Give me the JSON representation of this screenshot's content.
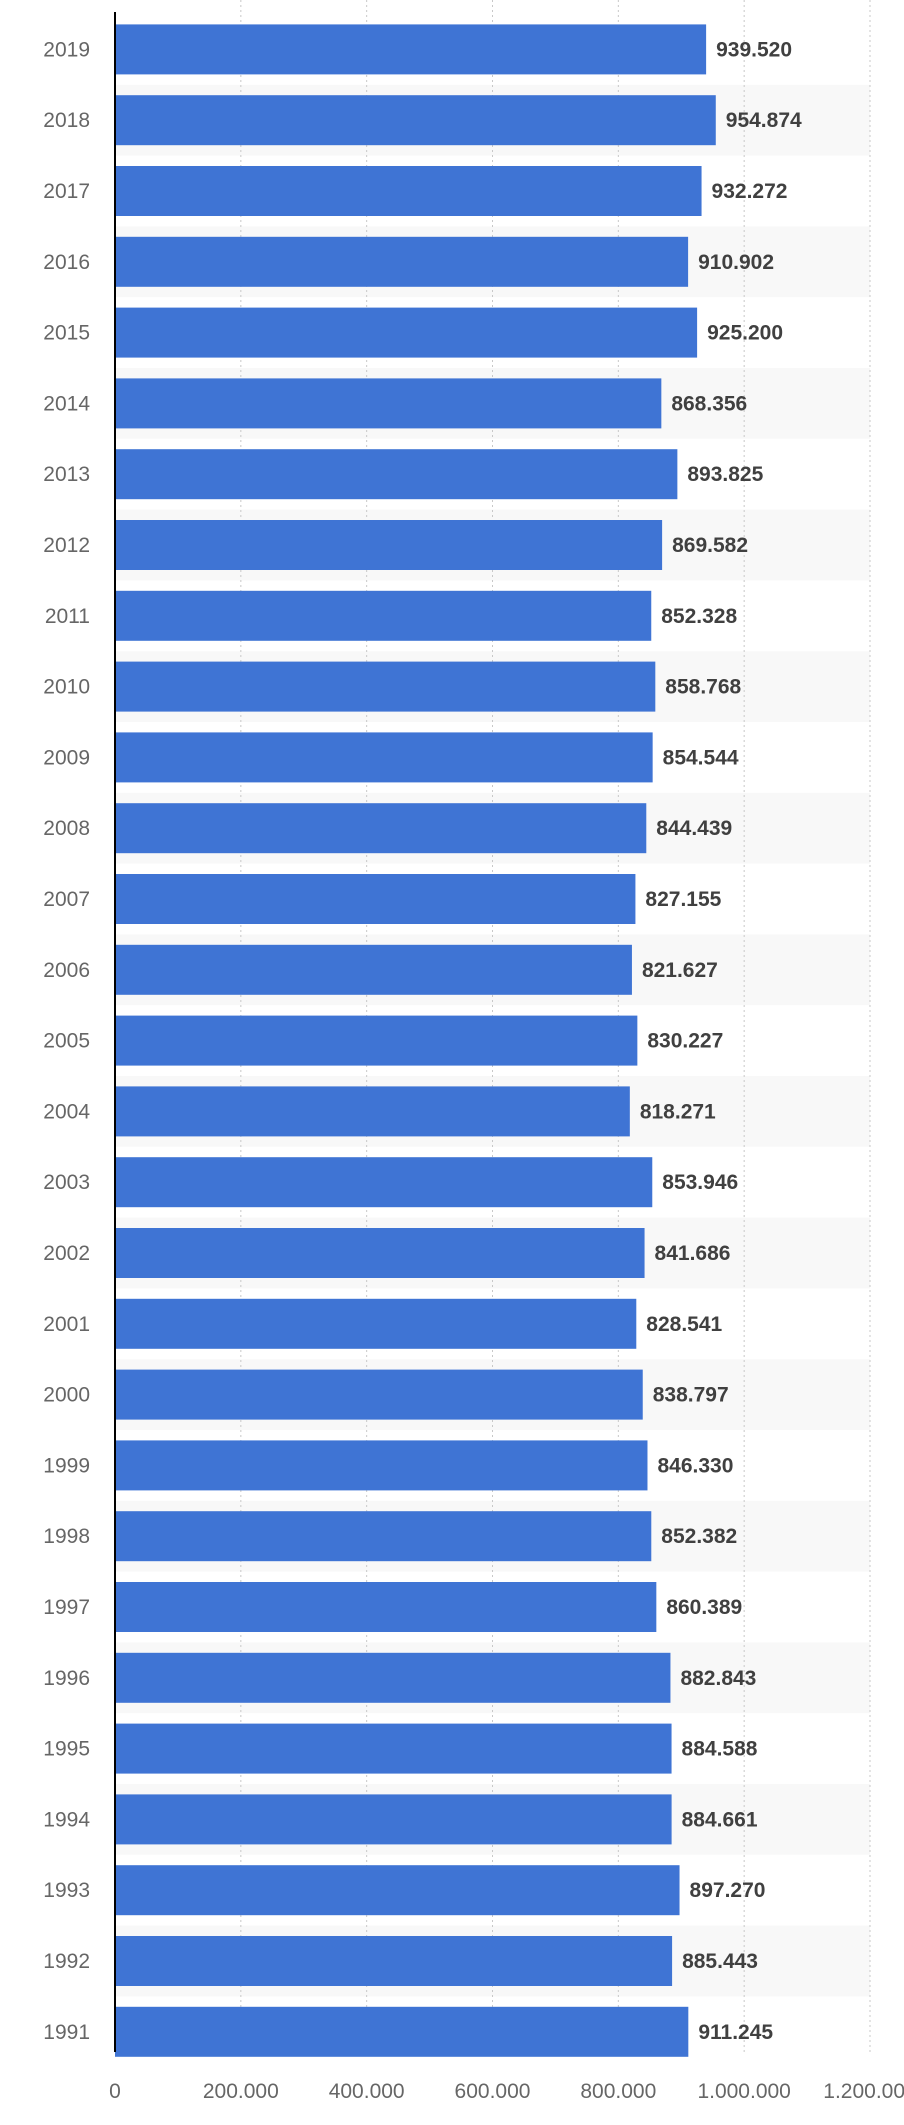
{
  "chart_data": {
    "type": "bar",
    "orientation": "horizontal",
    "categories": [
      "2019",
      "2018",
      "2017",
      "2016",
      "2015",
      "2014",
      "2013",
      "2012",
      "2011",
      "2010",
      "2009",
      "2008",
      "2007",
      "2006",
      "2005",
      "2004",
      "2003",
      "2002",
      "2001",
      "2000",
      "1999",
      "1998",
      "1997",
      "1996",
      "1995",
      "1994",
      "1993",
      "1992",
      "1991"
    ],
    "values": [
      939520,
      954874,
      932272,
      910902,
      925200,
      868356,
      893825,
      869582,
      852328,
      858768,
      854544,
      844439,
      827155,
      821627,
      830227,
      818271,
      853946,
      841686,
      828541,
      838797,
      846330,
      852382,
      860389,
      882843,
      884588,
      884661,
      897270,
      885443,
      911245
    ],
    "value_labels": [
      "939.520",
      "954.874",
      "932.272",
      "910.902",
      "925.200",
      "868.356",
      "893.825",
      "869.582",
      "852.328",
      "858.768",
      "854.544",
      "844.439",
      "827.155",
      "821.627",
      "830.227",
      "818.271",
      "853.946",
      "841.686",
      "828.541",
      "838.797",
      "846.330",
      "852.382",
      "860.389",
      "882.843",
      "884.588",
      "884.661",
      "897.270",
      "885.443",
      "911.245"
    ],
    "xlim": [
      0,
      1200000
    ],
    "x_ticks": [
      0,
      200000,
      400000,
      600000,
      800000,
      1000000,
      1200000
    ],
    "x_tick_labels": [
      "0",
      "200.000",
      "400.000",
      "600.000",
      "800.000",
      "1.000.000",
      "1.200.000"
    ],
    "title": "",
    "xlabel": "",
    "ylabel": "",
    "grid": true,
    "legend": "none",
    "colors": {
      "bar": "#3f74d4",
      "band": "#f8f8f8",
      "grid": "#c8c8c8",
      "axis": "#000000"
    }
  }
}
